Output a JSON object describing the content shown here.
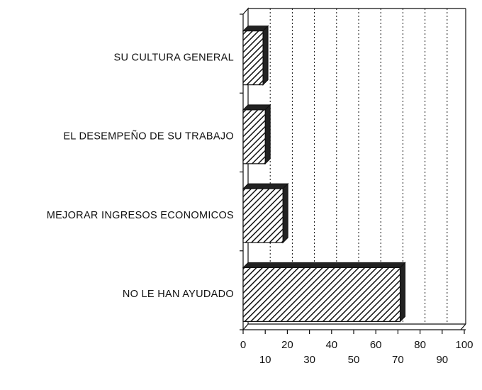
{
  "chart_data": {
    "type": "bar",
    "orientation": "horizontal",
    "categories": [
      "SU CULTURA GENERAL",
      "EL DESEMPEÑO DE SU TRABAJO",
      "MEJORAR INGRESOS ECONOMICOS",
      "NO LE HAN AYUDADO"
    ],
    "values": [
      9,
      10,
      18,
      71
    ],
    "color": "#222222",
    "xlim": [
      0,
      100
    ],
    "xticks": [
      0,
      10,
      20,
      30,
      40,
      50,
      60,
      70,
      80,
      90,
      100
    ],
    "grid": true
  }
}
